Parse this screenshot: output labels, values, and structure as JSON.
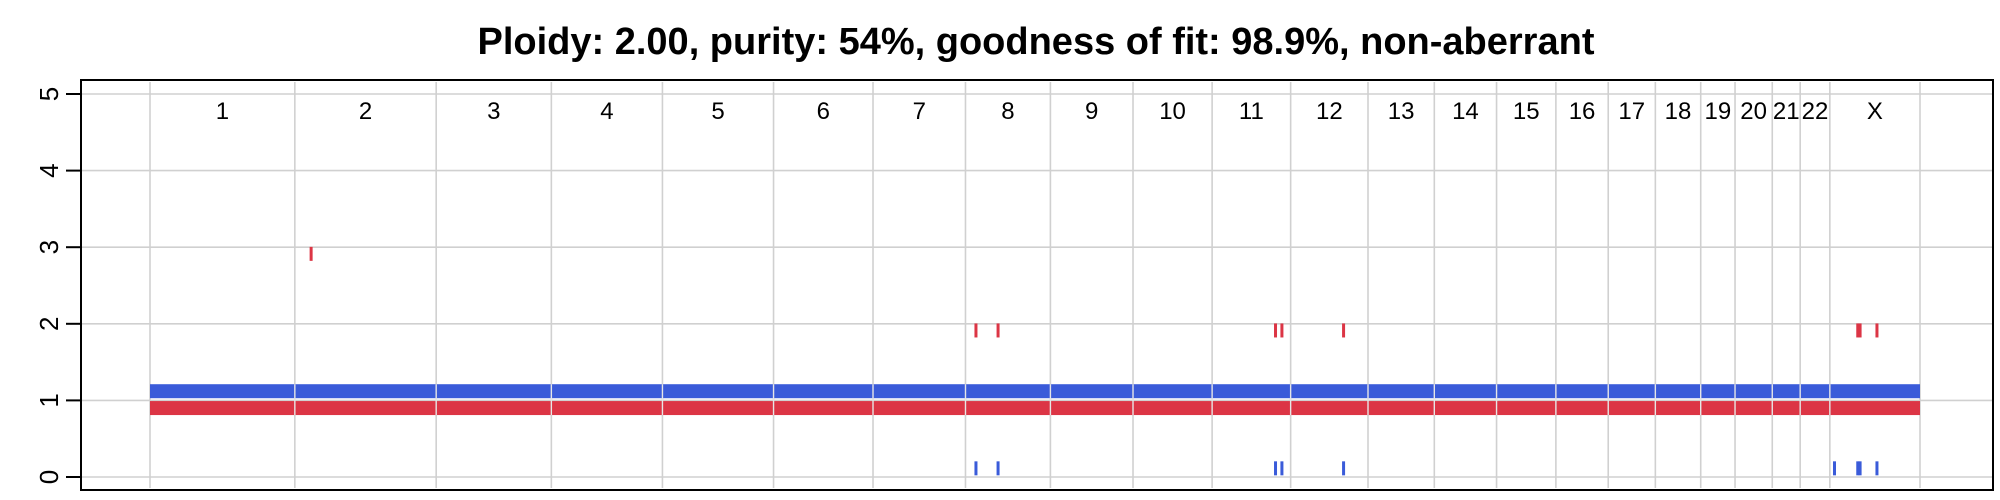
{
  "chart_data": {
    "type": "segment",
    "title": "Ploidy: 2.00, purity: 54%, goodness of fit: 98.9%, non-aberrant",
    "xlabel": "",
    "ylabel": "",
    "ylim": [
      0,
      5
    ],
    "yticks": [
      0,
      1,
      2,
      3,
      4,
      5
    ],
    "grid": true,
    "chromosomes": [
      {
        "name": "1",
        "start": 0,
        "end": 249
      },
      {
        "name": "2",
        "start": 249,
        "end": 492
      },
      {
        "name": "3",
        "start": 492,
        "end": 690
      },
      {
        "name": "4",
        "start": 690,
        "end": 881
      },
      {
        "name": "5",
        "start": 881,
        "end": 1072
      },
      {
        "name": "6",
        "start": 1072,
        "end": 1243
      },
      {
        "name": "7",
        "start": 1243,
        "end": 1402
      },
      {
        "name": "8",
        "start": 1402,
        "end": 1548
      },
      {
        "name": "9",
        "start": 1548,
        "end": 1690
      },
      {
        "name": "10",
        "start": 1690,
        "end": 1826
      },
      {
        "name": "11",
        "start": 1826,
        "end": 1961
      },
      {
        "name": "12",
        "start": 1961,
        "end": 2094
      },
      {
        "name": "13",
        "start": 2094,
        "end": 2208
      },
      {
        "name": "14",
        "start": 2208,
        "end": 2315
      },
      {
        "name": "15",
        "start": 2315,
        "end": 2417
      },
      {
        "name": "16",
        "start": 2417,
        "end": 2507
      },
      {
        "name": "17",
        "start": 2507,
        "end": 2588
      },
      {
        "name": "18",
        "start": 2588,
        "end": 2666
      },
      {
        "name": "19",
        "start": 2666,
        "end": 2725
      },
      {
        "name": "20",
        "start": 2725,
        "end": 2789
      },
      {
        "name": "21",
        "start": 2789,
        "end": 2837
      },
      {
        "name": "22",
        "start": 2837,
        "end": 2888
      },
      {
        "name": "X",
        "start": 2888,
        "end": 3043
      }
    ],
    "series": [
      {
        "color": "#3a5bd9",
        "segments": [
          {
            "start": 0,
            "end": 3043,
            "value": 1.12
          }
        ],
        "markers": [
          {
            "pos": 1420,
            "value": 0.1
          },
          {
            "pos": 1458,
            "value": 0.1
          },
          {
            "pos": 1935,
            "value": 0.1
          },
          {
            "pos": 1946,
            "value": 0.1
          },
          {
            "pos": 2052,
            "value": 0.1
          },
          {
            "pos": 2896,
            "value": 0.1
          },
          {
            "pos": 2936,
            "value": 0.1
          },
          {
            "pos": 2940,
            "value": 0.1
          },
          {
            "pos": 2969,
            "value": 0.1
          }
        ]
      },
      {
        "color": "#dc3545",
        "segments": [
          {
            "start": 0,
            "end": 3043,
            "value": 0.9
          }
        ],
        "markers": [
          {
            "pos": 277,
            "value": 2.9
          },
          {
            "pos": 1420,
            "value": 1.9
          },
          {
            "pos": 1458,
            "value": 1.9
          },
          {
            "pos": 1935,
            "value": 1.9
          },
          {
            "pos": 1946,
            "value": 1.9
          },
          {
            "pos": 2052,
            "value": 1.9
          },
          {
            "pos": 2936,
            "value": 1.9
          },
          {
            "pos": 2940,
            "value": 1.9
          },
          {
            "pos": 2969,
            "value": 1.9
          }
        ]
      }
    ]
  }
}
